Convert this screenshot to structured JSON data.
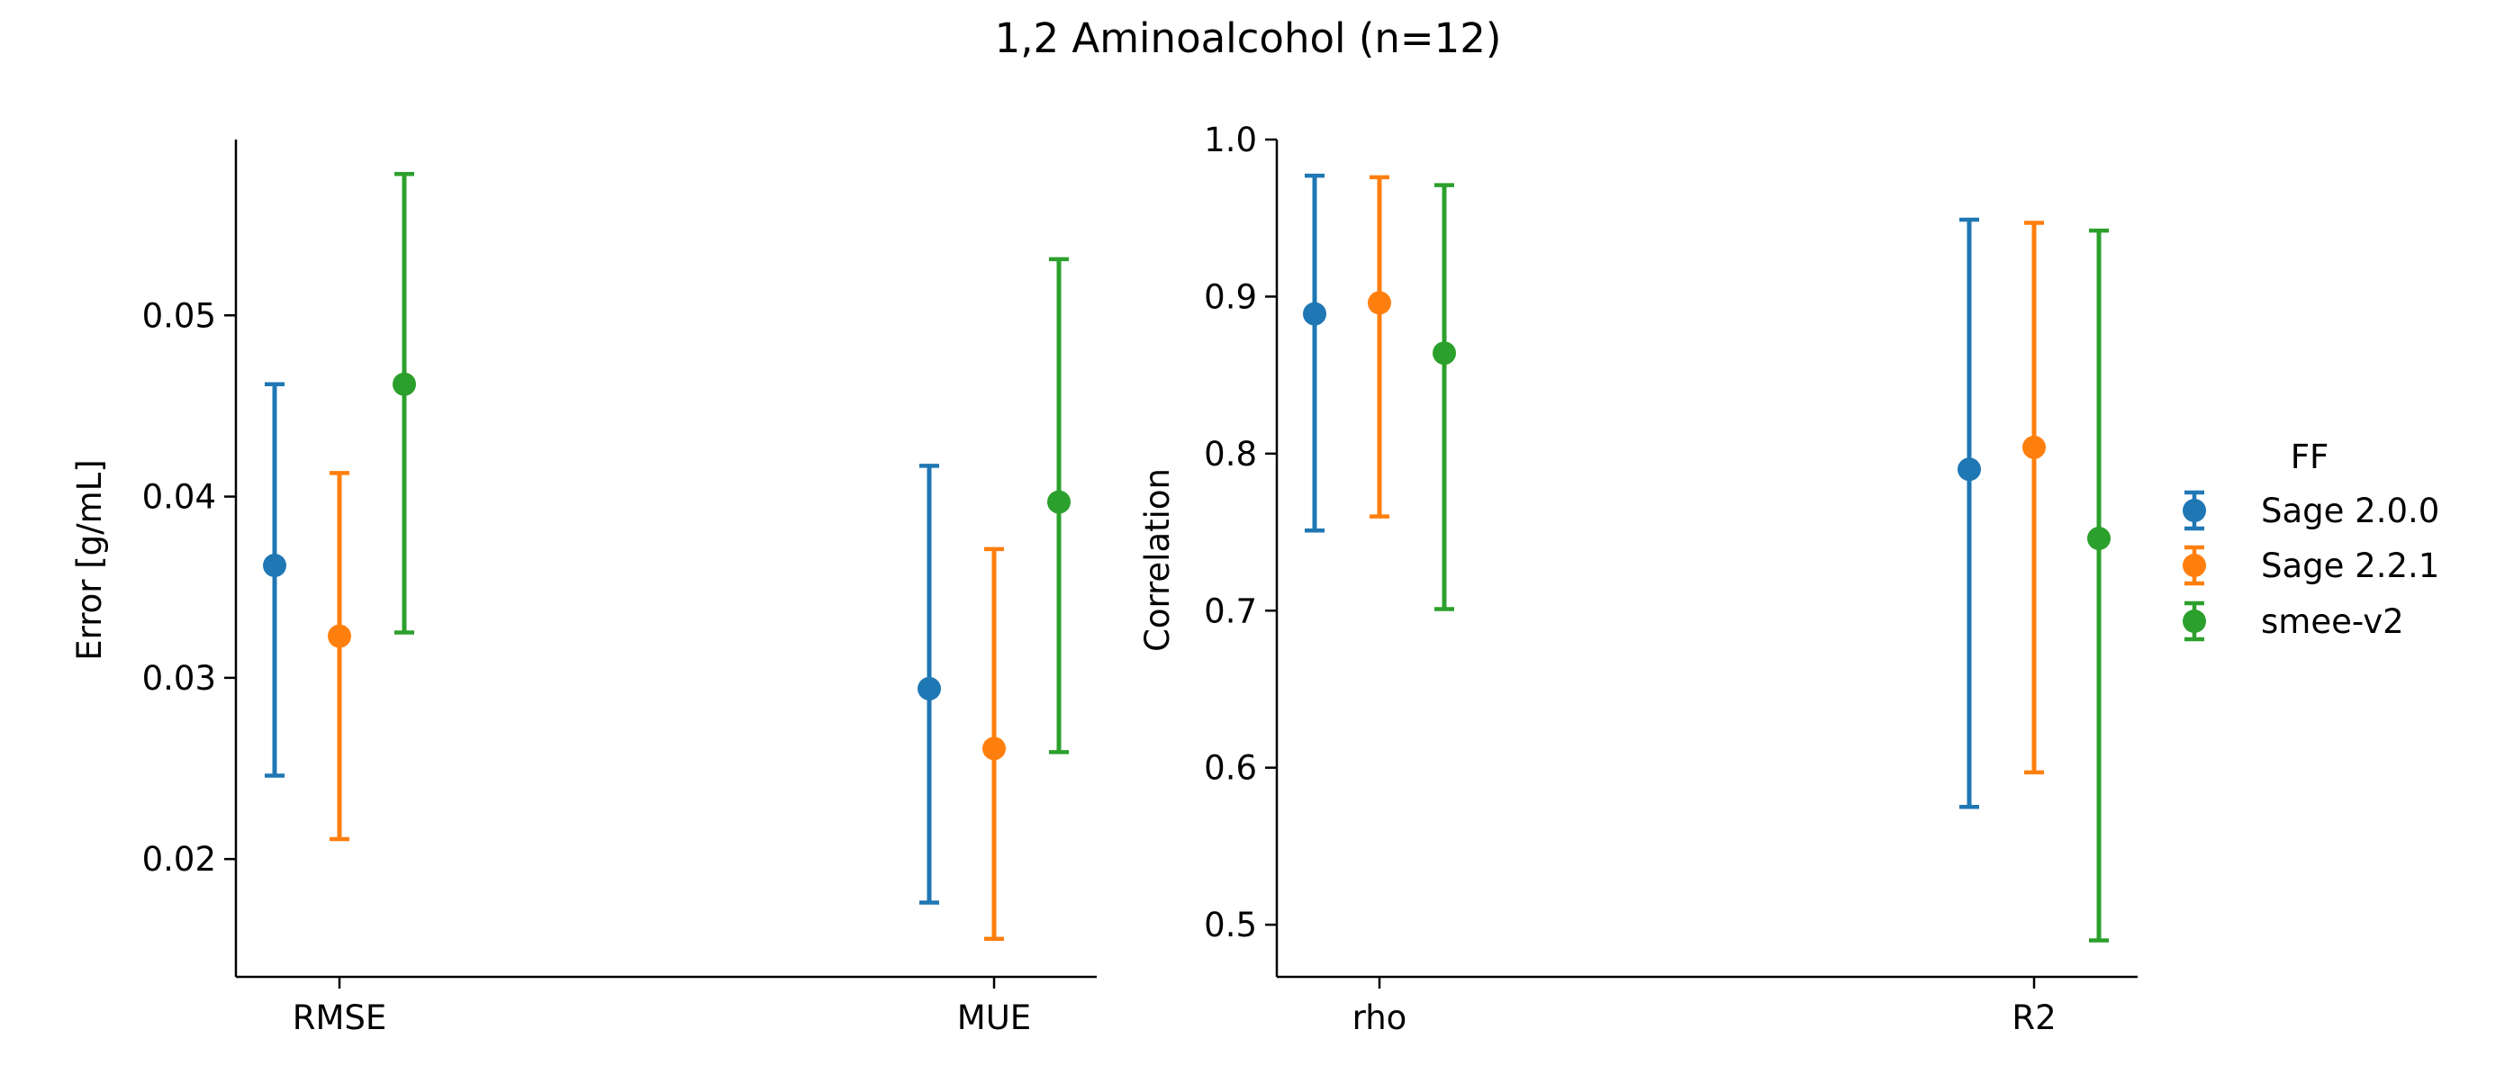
{
  "figure": {
    "title": "1,2 Aminoalcohol (n=12)"
  },
  "colors": {
    "Sage 2.0.0": "#1f77b4",
    "Sage 2.2.1": "#ff7f0e",
    "smee-v2": "#2ca02c"
  },
  "legend": {
    "title": "FF",
    "entries": [
      "Sage 2.0.0",
      "Sage 2.2.1",
      "smee-v2"
    ]
  },
  "chart_data": [
    {
      "type": "scatter",
      "style": "pointplot-with-errorbars",
      "categories": [
        "RMSE",
        "MUE"
      ],
      "xlabel": "",
      "ylabel": "Error [g/mL]",
      "ylim": [
        0.0135,
        0.0597
      ],
      "yticks": [
        "0.02",
        "0.03",
        "0.04",
        "0.05"
      ],
      "ytick_values": [
        0.02,
        0.03,
        0.04,
        0.05
      ],
      "series": [
        {
          "name": "Sage 2.0.0",
          "values": [
            0.0362,
            0.0294
          ],
          "ci_low": [
            0.0246,
            0.0176
          ],
          "ci_high": [
            0.0462,
            0.0417
          ]
        },
        {
          "name": "Sage 2.2.1",
          "values": [
            0.0323,
            0.0261
          ],
          "ci_low": [
            0.0211,
            0.0156
          ],
          "ci_high": [
            0.0413,
            0.0371
          ]
        },
        {
          "name": "smee-v2",
          "values": [
            0.0462,
            0.0397
          ],
          "ci_low": [
            0.0325,
            0.0259
          ],
          "ci_high": [
            0.0578,
            0.0531
          ]
        }
      ]
    },
    {
      "type": "scatter",
      "style": "pointplot-with-errorbars",
      "categories": [
        "rho",
        "R2"
      ],
      "xlabel": "",
      "ylabel": "Correlation",
      "ylim": [
        0.4668,
        1.0
      ],
      "yticks": [
        "0.5",
        "0.6",
        "0.7",
        "0.8",
        "0.9",
        "1.0"
      ],
      "ytick_values": [
        0.5,
        0.6,
        0.7,
        0.8,
        0.9,
        1.0
      ],
      "series": [
        {
          "name": "Sage 2.0.0",
          "values": [
            0.889,
            0.79
          ],
          "ci_low": [
            0.751,
            0.575
          ],
          "ci_high": [
            0.977,
            0.949
          ]
        },
        {
          "name": "Sage 2.2.1",
          "values": [
            0.896,
            0.804
          ],
          "ci_low": [
            0.76,
            0.597
          ],
          "ci_high": [
            0.976,
            0.947
          ]
        },
        {
          "name": "smee-v2",
          "values": [
            0.864,
            0.746
          ],
          "ci_low": [
            0.701,
            0.49
          ],
          "ci_high": [
            0.971,
            0.942
          ]
        }
      ]
    }
  ]
}
